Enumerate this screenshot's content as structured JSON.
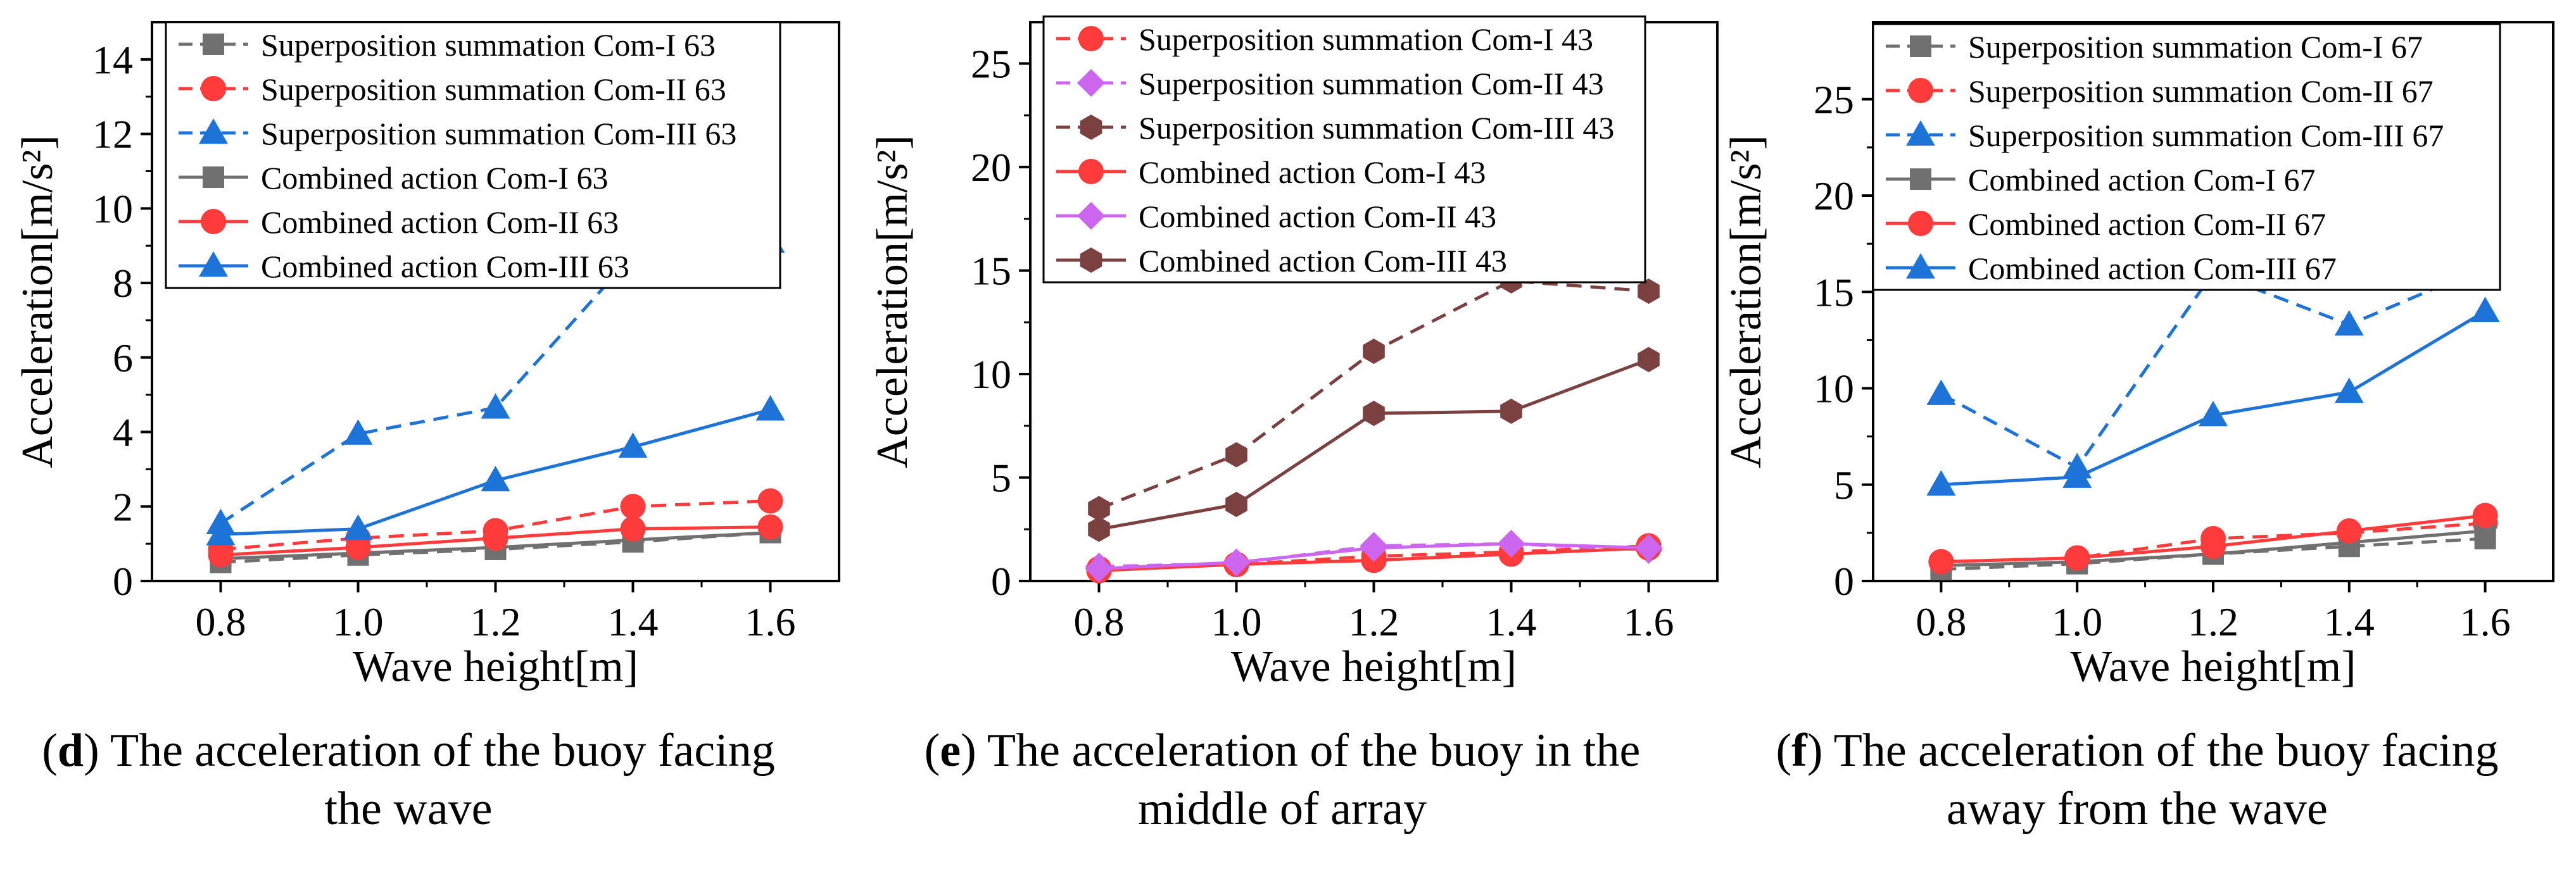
{
  "chart_data": [
    {
      "type": "line",
      "xlabel": "Wave height[m]",
      "ylabel": "Acceleration[m/s²]",
      "x": [
        0.8,
        1.0,
        1.2,
        1.4,
        1.6
      ],
      "xticks": [
        "0.8",
        "1.0",
        "1.2",
        "1.4",
        "1.6"
      ],
      "ylim": [
        0,
        15
      ],
      "yticks": [
        0,
        2,
        4,
        6,
        8,
        10,
        12,
        14
      ],
      "legend_position": "top-right",
      "series": [
        {
          "name": "Superposition summation Com-I 63",
          "style": "dashed",
          "marker": "square",
          "color": "#707070",
          "values": [
            0.5,
            0.7,
            0.85,
            1.05,
            1.3
          ]
        },
        {
          "name": "Superposition summation Com-II 63",
          "style": "dashed",
          "marker": "circle",
          "color": "#ff3b3b",
          "values": [
            0.85,
            1.15,
            1.35,
            2.0,
            2.15
          ]
        },
        {
          "name": "Superposition summation Com-III 63",
          "style": "dashed",
          "marker": "triangle",
          "color": "#1e73d8",
          "values": [
            1.55,
            3.95,
            4.65,
            8.75,
            9.1
          ]
        },
        {
          "name": "Combined action Com-I 63",
          "style": "solid",
          "marker": "square",
          "color": "#707070",
          "values": [
            0.6,
            0.75,
            0.9,
            1.1,
            1.3
          ]
        },
        {
          "name": "Combined action Com-II 63",
          "style": "solid",
          "marker": "circle",
          "color": "#ff3b3b",
          "values": [
            0.7,
            0.9,
            1.15,
            1.4,
            1.45
          ]
        },
        {
          "name": "Combined action Com-III 63",
          "style": "solid",
          "marker": "triangle",
          "color": "#1e73d8",
          "values": [
            1.25,
            1.4,
            2.7,
            3.6,
            4.6
          ]
        }
      ]
    },
    {
      "type": "line",
      "xlabel": "Wave height[m]",
      "ylabel": "Acceleration[m/s²]",
      "x": [
        0.8,
        1.0,
        1.2,
        1.4,
        1.6
      ],
      "xticks": [
        "0.8",
        "1.0",
        "1.2",
        "1.4",
        "1.6"
      ],
      "ylim": [
        0,
        27
      ],
      "yticks": [
        0,
        5,
        10,
        15,
        20,
        25
      ],
      "legend_position": "top-right",
      "series": [
        {
          "name": "Superposition summation Com-I 43",
          "style": "dashed",
          "marker": "circle",
          "color": "#ff3b3b",
          "values": [
            0.6,
            0.8,
            1.2,
            1.4,
            1.7
          ]
        },
        {
          "name": "Superposition summation Com-II 43",
          "style": "dashed",
          "marker": "diamond",
          "color": "#cc66ee",
          "values": [
            0.7,
            0.85,
            1.7,
            1.8,
            1.5
          ]
        },
        {
          "name": "Superposition summation Com-III 43",
          "style": "dashed",
          "marker": "hexagon",
          "color": "#7b4040",
          "values": [
            3.5,
            6.1,
            11.1,
            14.5,
            14.0
          ]
        },
        {
          "name": "Combined action Com-I 43",
          "style": "solid",
          "marker": "circle",
          "color": "#ff3b3b",
          "values": [
            0.5,
            0.8,
            1.0,
            1.3,
            1.6
          ]
        },
        {
          "name": "Combined action Com-II 43",
          "style": "solid",
          "marker": "diamond",
          "color": "#cc66ee",
          "values": [
            0.6,
            0.9,
            1.6,
            1.8,
            1.6
          ]
        },
        {
          "name": "Combined action Com-III 43",
          "style": "solid",
          "marker": "hexagon",
          "color": "#7b4040",
          "values": [
            2.5,
            3.7,
            8.1,
            8.2,
            10.7
          ]
        }
      ]
    },
    {
      "type": "line",
      "xlabel": "Wave height[m]",
      "ylabel": "Acceleration[m/s²]",
      "x": [
        0.8,
        1.0,
        1.2,
        1.4,
        1.6
      ],
      "xticks": [
        "0.8",
        "1.0",
        "1.2",
        "1.4",
        "1.6"
      ],
      "ylim": [
        0,
        29
      ],
      "yticks": [
        0,
        5,
        10,
        15,
        20,
        25
      ],
      "legend_position": "top-right",
      "series": [
        {
          "name": "Superposition summation Com-I 67",
          "style": "dashed",
          "marker": "square",
          "color": "#707070",
          "values": [
            0.6,
            0.9,
            1.4,
            1.8,
            2.2
          ]
        },
        {
          "name": "Superposition summation Com-II 67",
          "style": "dashed",
          "marker": "circle",
          "color": "#ff3b3b",
          "values": [
            1.0,
            1.2,
            2.2,
            2.5,
            3.0
          ]
        },
        {
          "name": "Superposition summation Com-III 67",
          "style": "dashed",
          "marker": "triangle",
          "color": "#1e73d8",
          "values": [
            9.7,
            5.9,
            16.0,
            13.3,
            16.3
          ]
        },
        {
          "name": "Combined action Com-I 67",
          "style": "solid",
          "marker": "square",
          "color": "#707070",
          "values": [
            0.8,
            1.0,
            1.4,
            2.0,
            2.6
          ]
        },
        {
          "name": "Combined action Com-II 67",
          "style": "solid",
          "marker": "circle",
          "color": "#ff3b3b",
          "values": [
            1.0,
            1.2,
            1.8,
            2.6,
            3.4
          ]
        },
        {
          "name": "Combined action Com-III 67",
          "style": "solid",
          "marker": "triangle",
          "color": "#1e73d8",
          "values": [
            5.0,
            5.4,
            8.6,
            9.8,
            14.0
          ]
        }
      ]
    }
  ],
  "captions": [
    {
      "letter": "d",
      "text": ") The acceleration of the buoy facing the wave"
    },
    {
      "letter": "e",
      "text": ") The acceleration of the buoy in the middle of array"
    },
    {
      "letter": "f",
      "text": ") The acceleration of the buoy facing away from the wave"
    }
  ]
}
